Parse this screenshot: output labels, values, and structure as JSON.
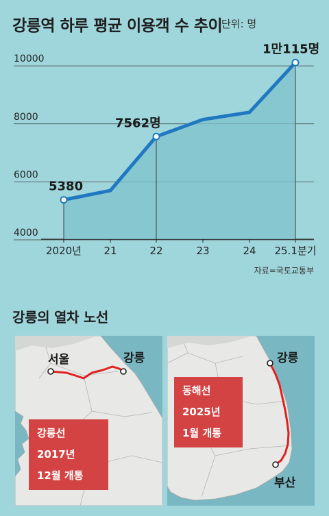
{
  "title": "강릉역 하루 평균 이용객 수 추이",
  "unit": "단위: 명",
  "source": "자료=국토교통부",
  "colors": {
    "background": "#9fd6dc",
    "line": "#1f78c1",
    "area": "#7fc2cc",
    "grid": "#3a3a3a",
    "card": "#d44343",
    "route": "#e02020"
  },
  "chart_data": {
    "type": "line",
    "categories": [
      "2020년",
      "21",
      "22",
      "23",
      "24",
      "25.1분기"
    ],
    "values": [
      5380,
      5700,
      7562,
      8150,
      8400,
      10115
    ],
    "data_labels": [
      "5380",
      "",
      "7562명",
      "",
      "",
      "1만115명"
    ],
    "y_ticks": [
      "4000",
      "6000",
      "8000",
      "10000"
    ],
    "ylim": [
      4000,
      10500
    ],
    "grid": true,
    "fill": "area"
  },
  "routes": {
    "subtitle": "강릉의 열차 노선",
    "left": {
      "cities": [
        "서울",
        "강릉"
      ],
      "card": [
        "강릉선",
        "2017년",
        "12월 개통"
      ]
    },
    "right": {
      "cities": [
        "강릉",
        "부산"
      ],
      "card": [
        "동해선",
        "2025년",
        "1월 개통"
      ]
    }
  }
}
